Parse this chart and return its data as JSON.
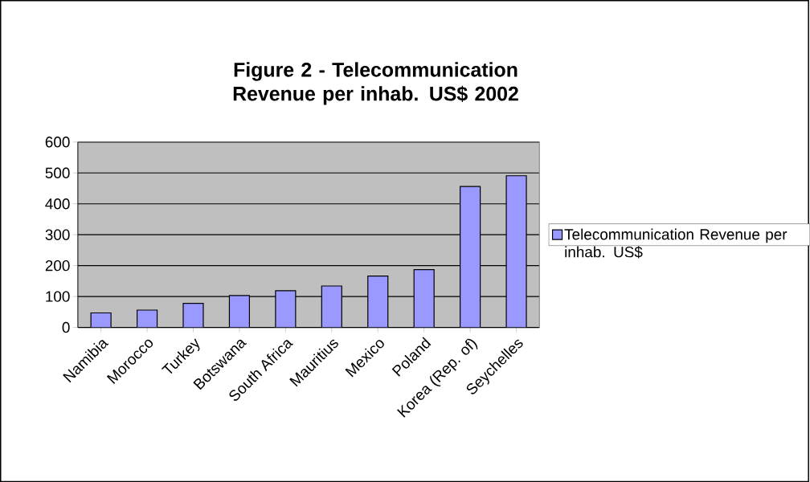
{
  "chart_data": {
    "type": "bar",
    "title": "Figure 2 - Telecommunication Revenue per inhab. US$ 2002",
    "categories": [
      "Namibia",
      "Morocco",
      "Turkey",
      "Botswana",
      "South Africa",
      "Mauritius",
      "Mexico",
      "Poland",
      "Korea (Rep. of)",
      "Seychelles"
    ],
    "series": [
      {
        "name": "Telecommunication Revenue per inhab. US$",
        "color": "#9999ff",
        "values": [
          47,
          56,
          78,
          103,
          119,
          134,
          166,
          187,
          456,
          491
        ]
      }
    ],
    "ylim": [
      0,
      600
    ],
    "yticks": [
      0,
      100,
      200,
      300,
      400,
      500,
      600
    ],
    "grid": "y",
    "legend": "right"
  }
}
